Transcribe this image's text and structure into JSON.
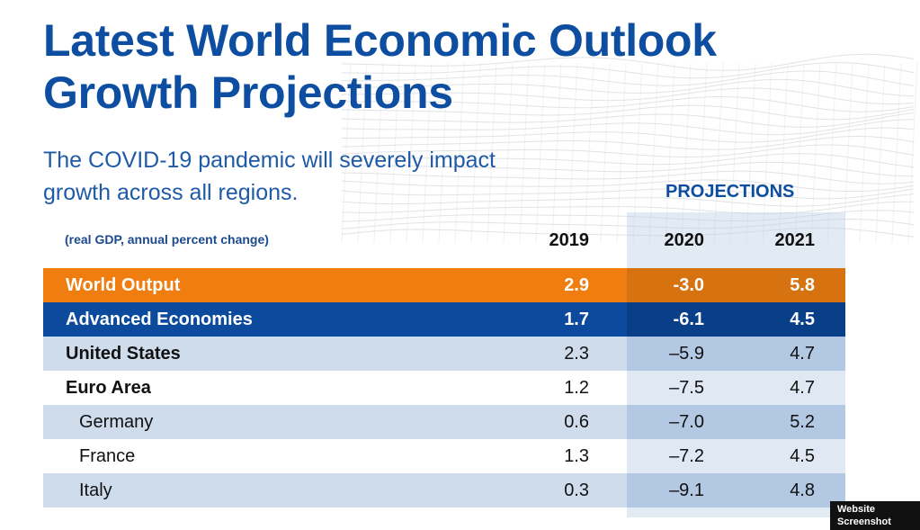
{
  "header": {
    "title_line1": "Latest World Economic Outlook",
    "title_line2": "Growth Projections",
    "subtitle_line1": "The COVID-19 pandemic will severely impact",
    "subtitle_line2": "growth across all regions."
  },
  "colors": {
    "title": "#0d4ea1",
    "world_row": "#ef7d10",
    "advanced_row": "#0b4a9c",
    "shaded_row": "#cfdcec",
    "projection_shade": "#b3c8e3"
  },
  "watermark": "Website Screenshot",
  "chart_data": {
    "type": "table",
    "units_label": "(real GDP, annual percent change)",
    "group_label": "PROJECTIONS",
    "columns": [
      "2019",
      "2020",
      "2021"
    ],
    "rows": [
      {
        "label": "World Output",
        "values": [
          "2.9",
          "-3.0",
          "5.8"
        ]
      },
      {
        "label": "Advanced Economies",
        "values": [
          "1.7",
          "-6.1",
          "4.5"
        ]
      },
      {
        "label": "United States",
        "values": [
          "2.3",
          "–5.9",
          "4.7"
        ]
      },
      {
        "label": "Euro Area",
        "values": [
          "1.2",
          "–7.5",
          "4.7"
        ]
      },
      {
        "label": "Germany",
        "values": [
          "0.6",
          "–7.0",
          "5.2"
        ]
      },
      {
        "label": "France",
        "values": [
          "1.3",
          "–7.2",
          "4.5"
        ]
      },
      {
        "label": "Italy",
        "values": [
          "0.3",
          "–9.1",
          "4.8"
        ]
      }
    ]
  }
}
